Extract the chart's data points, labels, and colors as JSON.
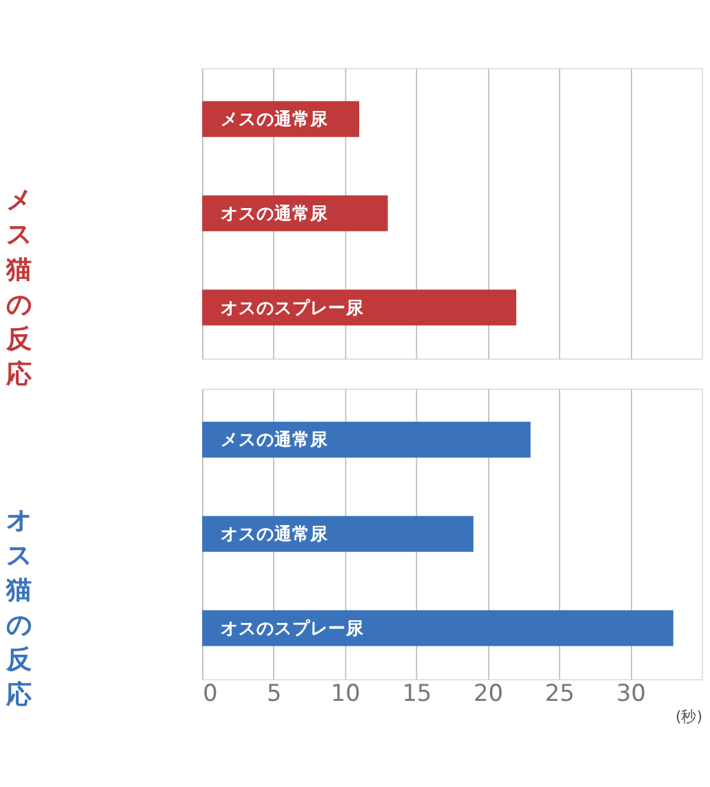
{
  "chart_data": [
    {
      "type": "bar",
      "orientation": "horizontal",
      "ylabel": "メス猫の反応",
      "categories": [
        "メスの通常尿",
        "オスの通常尿",
        "オスのスプレー尿"
      ],
      "values": [
        11,
        13,
        22
      ],
      "color": "#c0393b",
      "xlim": [
        0,
        35
      ],
      "xticks": [
        0,
        5,
        10,
        15,
        20,
        25,
        30
      ],
      "grid": "x",
      "tick_labels": false
    },
    {
      "type": "bar",
      "orientation": "horizontal",
      "ylabel": "オス猫の反応",
      "xlabel": "(秒)",
      "categories": [
        "メスの通常尿",
        "オスの通常尿",
        "オスのスプレー尿"
      ],
      "values": [
        23,
        19,
        33
      ],
      "color": "#3a73bb",
      "xlim": [
        0,
        35
      ],
      "xticks": [
        0,
        5,
        10,
        15,
        20,
        25,
        30
      ],
      "grid": "x",
      "tick_labels": "x"
    }
  ]
}
